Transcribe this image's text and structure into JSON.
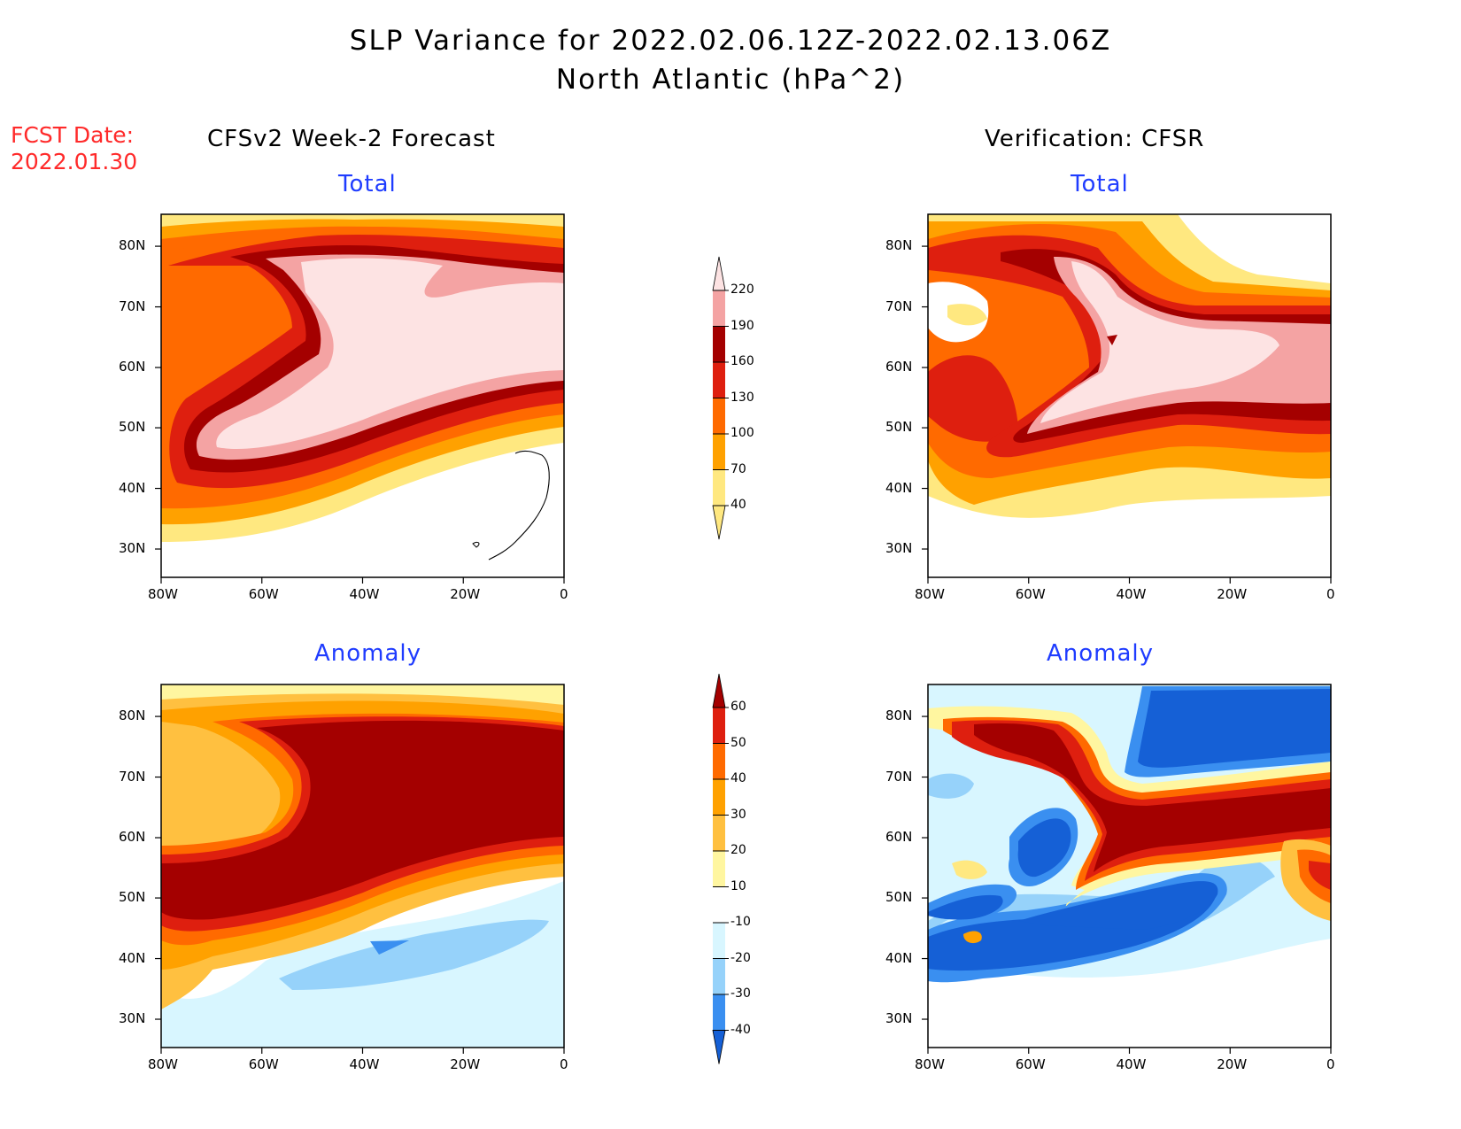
{
  "header": {
    "title_line1": "SLP Variance for 2022.02.06.12Z-2022.02.13.06Z",
    "title_line2": "North Atlantic (hPa^2)",
    "fcst_label": "FCST Date:",
    "fcst_date": "2022.01.30"
  },
  "columns": {
    "left": "CFSv2 Week-2 Forecast",
    "right": "Verification: CFSR"
  },
  "panels": {
    "forecast_total_title": "Total",
    "verif_total_title": "Total",
    "forecast_anomaly_title": "Anomaly",
    "verif_anomaly_title": "Anomaly"
  },
  "axes": {
    "lat_labels": [
      "80N",
      "70N",
      "60N",
      "50N",
      "40N",
      "30N"
    ],
    "lon_labels": [
      "80W",
      "60W",
      "40W",
      "20W",
      "0"
    ]
  },
  "colorbar_total": {
    "levels": [
      "220",
      "190",
      "160",
      "130",
      "100",
      "70",
      "40"
    ],
    "colors": [
      "#fde3e3",
      "#f4a3a3",
      "#a40000",
      "#de1f0f",
      "#ff6a00",
      "#ffa100",
      "#ffe880"
    ]
  },
  "colorbar_anomaly": {
    "levels": [
      "60",
      "50",
      "40",
      "30",
      "20",
      "10",
      "-10",
      "-20",
      "-30",
      "-40"
    ],
    "colors": [
      "#a40000",
      "#de1f0f",
      "#ff6a00",
      "#ffa100",
      "#ffc040",
      "#fff6a0",
      "#ffffff",
      "#d8f6ff",
      "#96d2fa",
      "#3a8ff0",
      "#1560d6"
    ]
  }
}
